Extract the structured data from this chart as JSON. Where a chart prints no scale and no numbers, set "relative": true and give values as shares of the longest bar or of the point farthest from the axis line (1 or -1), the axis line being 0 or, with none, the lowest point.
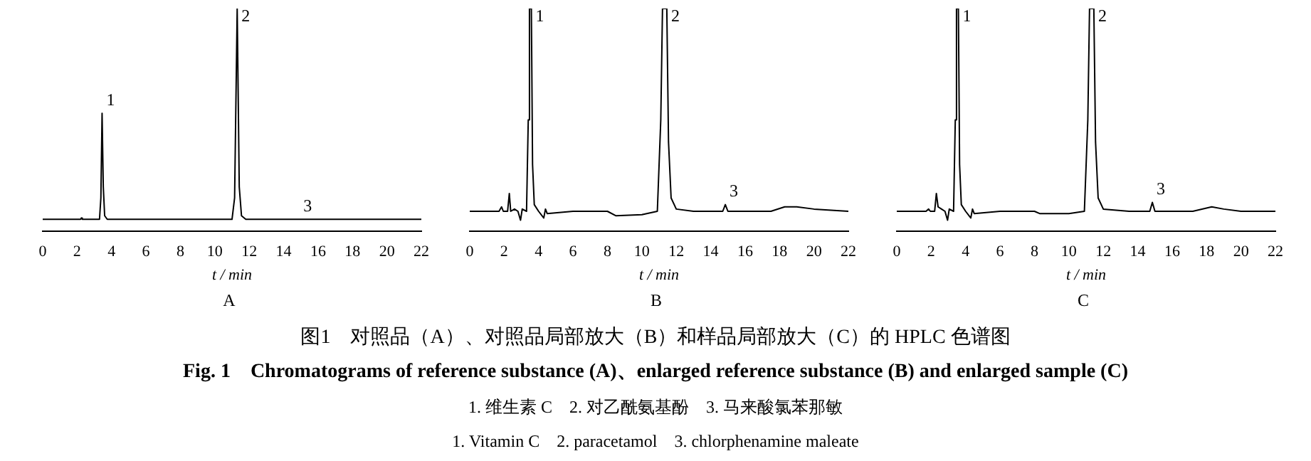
{
  "chart_data": [
    {
      "type": "line",
      "title": "A",
      "xlabel": "t / min",
      "relative": true,
      "xlim": [
        0,
        22
      ],
      "xticks": [
        0,
        2,
        4,
        6,
        8,
        10,
        12,
        14,
        16,
        18,
        20,
        22
      ],
      "tick_labels": "x",
      "grid": false,
      "legend": false,
      "marker": "none",
      "line_style": "solid",
      "series": [
        {
          "color": "#000000",
          "x": [
            0,
            2.2,
            2.25,
            2.3,
            3.3,
            3.38,
            3.45,
            3.52,
            3.6,
            3.75,
            11.0,
            11.15,
            11.3,
            11.42,
            11.55,
            11.8,
            14.9,
            22
          ],
          "values": [
            0.054,
            0.054,
            0.06,
            0.054,
            0.054,
            0.15,
            0.53,
            0.2,
            0.07,
            0.054,
            0.054,
            0.15,
            1,
            0.2,
            0.07,
            0.054,
            0.054,
            0.054
          ]
        }
      ],
      "annotations": [
        {
          "text": "1",
          "x": 3.45,
          "y": 0.53
        },
        {
          "text": "2",
          "x": 11.3,
          "y": 1
        },
        {
          "text": "3",
          "x": 14.9,
          "y": 0.054
        },
        "图1　对照品（A）、对照品局部放大（B）和样品局部放大（C）的 HPLC 色谱图",
        "Fig. 1　Chromatograms of reference substance (A)、enlarged reference substance (B) and enlarged sample (C)",
        "1. 维生素 C　2. 对乙酰氨基酚　3. 马来酸氯苯那敏",
        "1. Vitamin C　2. paracetamol　3. chlorphenamine maleate"
      ]
    },
    {
      "type": "line",
      "title": "B",
      "xlabel": "t / min",
      "relative": true,
      "xlim": [
        0,
        22
      ],
      "xticks": [
        0,
        2,
        4,
        6,
        8,
        10,
        12,
        14,
        16,
        18,
        20,
        22
      ],
      "tick_labels": "x",
      "grid": false,
      "legend": false,
      "marker": "none",
      "line_style": "solid",
      "series": [
        {
          "color": "#000000",
          "x": [
            0,
            1.7,
            1.85,
            1.95,
            2.2,
            2.3,
            2.38,
            2.6,
            2.8,
            2.95,
            3.05,
            3.3,
            3.4,
            3.47,
            3.58,
            3.65,
            3.75,
            4.0,
            4.3,
            4.4,
            4.5,
            6,
            8,
            8.5,
            10,
            10.9,
            11.1,
            11.2,
            11.45,
            11.55,
            11.7,
            12,
            13,
            14.7,
            14.85,
            15,
            17.5,
            18.3,
            19,
            20,
            22
          ],
          "values": [
            0.09,
            0.09,
            0.11,
            0.09,
            0.09,
            0.17,
            0.09,
            0.1,
            0.09,
            0.05,
            0.1,
            0.09,
            0.5,
            1,
            1,
            0.3,
            0.12,
            0.09,
            0.06,
            0.1,
            0.08,
            0.09,
            0.09,
            0.07,
            0.075,
            0.09,
            0.5,
            1,
            1,
            0.4,
            0.15,
            0.1,
            0.09,
            0.09,
            0.12,
            0.09,
            0.09,
            0.11,
            0.11,
            0.1,
            0.09
          ]
        }
      ],
      "annotations": [
        {
          "text": "1",
          "x": 3.58,
          "y": 1
        },
        {
          "text": "2",
          "x": 11.45,
          "y": 1
        },
        {
          "text": "3",
          "x": 14.85,
          "y": 0.12
        }
      ]
    },
    {
      "type": "line",
      "title": "C",
      "xlabel": "t / min",
      "relative": true,
      "xlim": [
        0,
        22
      ],
      "xticks": [
        0,
        2,
        4,
        6,
        8,
        10,
        12,
        14,
        16,
        18,
        20,
        22
      ],
      "tick_labels": "x",
      "grid": false,
      "legend": false,
      "marker": "none",
      "line_style": "solid",
      "series": [
        {
          "color": "#000000",
          "x": [
            0,
            1.7,
            1.85,
            1.95,
            2.2,
            2.3,
            2.4,
            2.6,
            2.8,
            2.95,
            3.05,
            3.3,
            3.4,
            3.47,
            3.58,
            3.65,
            3.75,
            4.0,
            4.3,
            4.4,
            4.5,
            6,
            8,
            8.3,
            10,
            10.9,
            11.1,
            11.2,
            11.45,
            11.55,
            11.7,
            12,
            13.5,
            14.7,
            14.85,
            15,
            17.2,
            18.3,
            19,
            20,
            22
          ],
          "values": [
            0.09,
            0.09,
            0.1,
            0.09,
            0.09,
            0.17,
            0.11,
            0.1,
            0.09,
            0.05,
            0.1,
            0.09,
            0.5,
            1,
            1,
            0.3,
            0.12,
            0.09,
            0.06,
            0.1,
            0.08,
            0.09,
            0.09,
            0.08,
            0.08,
            0.09,
            0.5,
            1,
            1,
            0.4,
            0.15,
            0.1,
            0.09,
            0.09,
            0.13,
            0.09,
            0.09,
            0.11,
            0.1,
            0.09,
            0.09
          ]
        }
      ],
      "annotations": [
        {
          "text": "1",
          "x": 3.58,
          "y": 1
        },
        {
          "text": "2",
          "x": 11.45,
          "y": 1
        },
        {
          "text": "3",
          "x": 14.85,
          "y": 0.13
        }
      ]
    }
  ]
}
